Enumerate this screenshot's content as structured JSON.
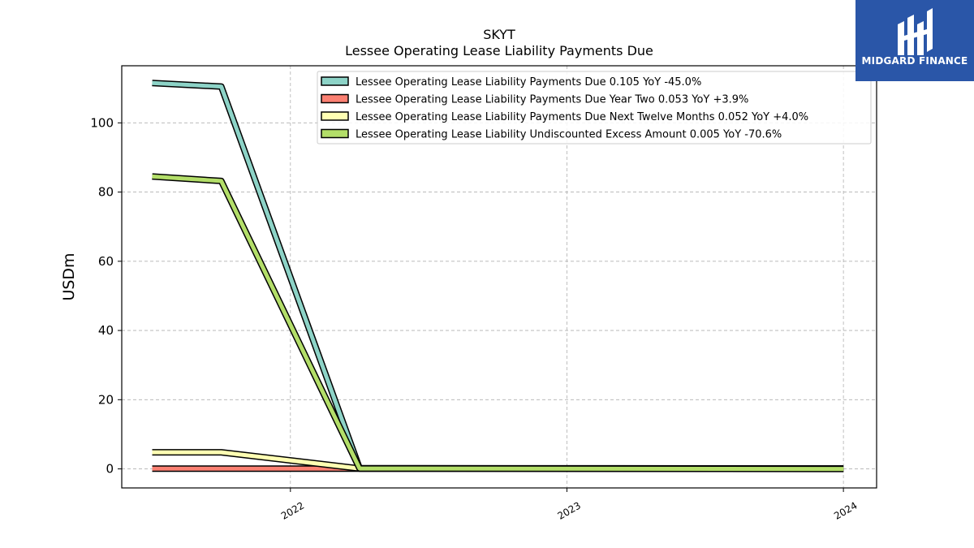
{
  "chart_data": {
    "type": "line",
    "title": "SKYT",
    "subtitle": "Lessee Operating Lease Liability Payments Due",
    "ylabel": "USDm",
    "xlabel": "",
    "ylim": [
      -5.5,
      116.5
    ],
    "xlim": [
      2021.39,
      2024.12
    ],
    "yticks": [
      0,
      20,
      40,
      60,
      80,
      100
    ],
    "xticks": [
      "2022",
      "2023",
      "2024"
    ],
    "grid": true,
    "legend_position": "top-right",
    "series": [
      {
        "name": "Lessee Operating Lease Liability Payments Due  0.105 YoY -45.0%",
        "color": "#8dd3c7",
        "x": [
          2021.5,
          2021.75,
          2022.25,
          2024.0
        ],
        "y": [
          111.5,
          110.5,
          0.2,
          0.1
        ]
      },
      {
        "name": "Lessee Operating Lease Liability Payments Due Year Two  0.053 YoY +3.9%",
        "color": "#fb8072",
        "x": [
          2021.5,
          2021.75,
          2022.25,
          2024.0
        ],
        "y": [
          0.05,
          0.05,
          0.05,
          0.05
        ]
      },
      {
        "name": "Lessee Operating Lease Liability Payments Due Next Twelve Months  0.052 YoY +4.0%",
        "color": "#ffffb3",
        "x": [
          2021.5,
          2021.75,
          2022.25,
          2024.0
        ],
        "y": [
          4.8,
          4.8,
          0.1,
          0.05
        ]
      },
      {
        "name": "Lessee Operating Lease Liability Undiscounted Excess Amount  0.005 YoY -70.6%",
        "color": "#b3de69",
        "x": [
          2021.5,
          2021.75,
          2022.25,
          2024.0
        ],
        "y": [
          84.5,
          83.2,
          0.1,
          0.0
        ]
      }
    ]
  },
  "logo": {
    "text": "MIDGARD FINANCE",
    "background": "#2a56a8"
  }
}
